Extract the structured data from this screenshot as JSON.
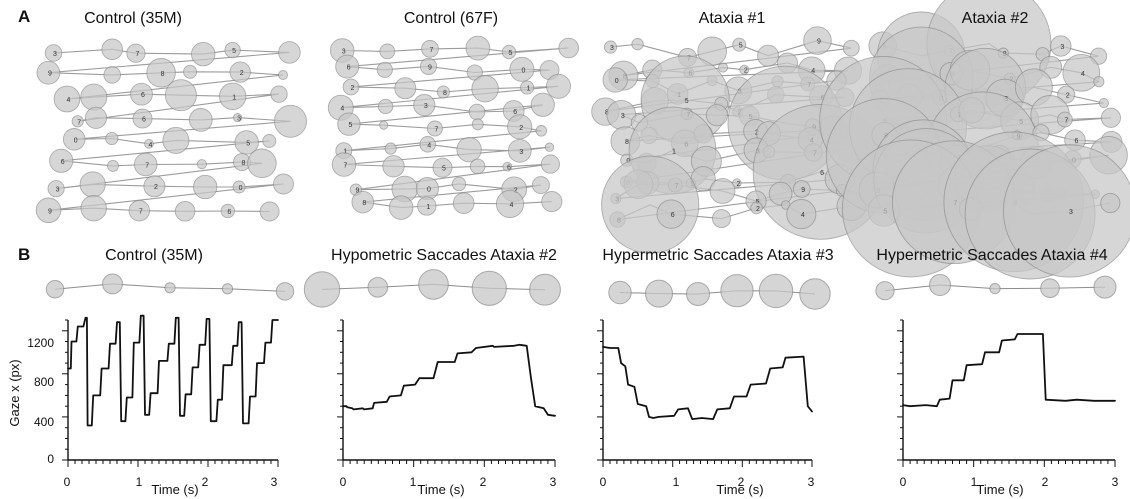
{
  "figure": {
    "panel_labels": [
      "A",
      "B"
    ]
  },
  "chart_data": [
    {
      "type": "scatter",
      "panel": "A",
      "title": "Control (35M)",
      "description_words": "fixation",
      "fixation_labels": [
        "3",
        "7",
        "5",
        "9",
        "8",
        "2",
        "4",
        "6",
        "1",
        "7",
        "6",
        "3",
        "0",
        "4",
        "5",
        "6",
        "7",
        "8",
        "3",
        "2",
        "0",
        "9",
        "7",
        "6",
        "2"
      ],
      "colors": {
        "fixation": "#c7c7c7",
        "fixation_stroke": "#8d8d8d",
        "path": "#8b8b8b"
      }
    },
    {
      "type": "scatter",
      "panel": "A",
      "title": "Control (67F)",
      "fixation_labels": [
        "3",
        "7",
        "5",
        "6",
        "9",
        "0",
        "2",
        "8",
        "1",
        "4",
        "3",
        "6",
        "5",
        "7",
        "2",
        "1",
        "4"
      ],
      "colors": {
        "fixation": "#c7c7c7",
        "fixation_stroke": "#8d8d8d",
        "path": "#8b8b8b"
      }
    },
    {
      "type": "scatter",
      "panel": "A",
      "title": "Ataxia #1",
      "fixation_labels": [
        "3",
        "7",
        "5",
        "9",
        "8",
        "6",
        "2",
        "4",
        "0",
        "1",
        "3",
        "7",
        "8",
        "5",
        "2",
        "6"
      ],
      "colors": {
        "fixation": "#c7c7c7",
        "fixation_stroke": "#8d8d8d",
        "path": "#8b8b8b"
      }
    },
    {
      "type": "scatter",
      "panel": "A",
      "title": "Ataxia #2",
      "fixation_labels": [
        "5",
        "7",
        "8",
        "3",
        "9",
        "6",
        "2",
        "4",
        "1",
        "0",
        "3",
        "2",
        "8",
        "7"
      ],
      "colors": {
        "fixation": "#c7c7c7",
        "fixation_stroke": "#8d8d8d",
        "path": "#8b8b8b"
      }
    },
    {
      "type": "line",
      "panel": "B",
      "title": "Control (35M)",
      "xlabel": "Time (s)",
      "ylabel": "Gaze x (px)",
      "xlim": [
        0,
        3
      ],
      "ylim": [
        0,
        1300
      ],
      "xticks": [
        "0",
        "1",
        "2",
        "3"
      ],
      "yticks": [
        "0",
        "400",
        "800",
        "1200"
      ],
      "series": [
        {
          "points": [
            [
              0.0,
              850
            ],
            [
              0.04,
              850
            ],
            [
              0.05,
              1100
            ],
            [
              0.12,
              1100
            ],
            [
              0.14,
              1240
            ],
            [
              0.22,
              1240
            ],
            [
              0.25,
              1320
            ],
            [
              0.27,
              1320
            ],
            [
              0.28,
              320
            ],
            [
              0.34,
              320
            ],
            [
              0.36,
              600
            ],
            [
              0.46,
              600
            ],
            [
              0.48,
              850
            ],
            [
              0.58,
              850
            ],
            [
              0.6,
              1080
            ],
            [
              0.68,
              1080
            ],
            [
              0.7,
              1280
            ],
            [
              0.74,
              1280
            ],
            [
              0.76,
              360
            ],
            [
              0.82,
              360
            ],
            [
              0.84,
              580
            ],
            [
              0.92,
              580
            ],
            [
              0.94,
              1090
            ],
            [
              1.02,
              1090
            ],
            [
              1.04,
              1340
            ],
            [
              1.08,
              1340
            ],
            [
              1.1,
              420
            ],
            [
              1.16,
              420
            ],
            [
              1.18,
              620
            ],
            [
              1.28,
              620
            ],
            [
              1.3,
              920
            ],
            [
              1.42,
              920
            ],
            [
              1.44,
              1080
            ],
            [
              1.52,
              1080
            ],
            [
              1.54,
              1320
            ],
            [
              1.58,
              1320
            ],
            [
              1.6,
              410
            ],
            [
              1.66,
              410
            ],
            [
              1.68,
              610
            ],
            [
              1.76,
              610
            ],
            [
              1.78,
              860
            ],
            [
              1.86,
              860
            ],
            [
              1.88,
              1070
            ],
            [
              1.96,
              1070
            ],
            [
              1.98,
              1310
            ],
            [
              2.02,
              1310
            ],
            [
              2.04,
              360
            ],
            [
              2.12,
              360
            ],
            [
              2.14,
              560
            ],
            [
              2.2,
              560
            ],
            [
              2.22,
              880
            ],
            [
              2.34,
              880
            ],
            [
              2.36,
              1060
            ],
            [
              2.42,
              1060
            ],
            [
              2.44,
              1280
            ],
            [
              2.48,
              1280
            ],
            [
              2.5,
              340
            ],
            [
              2.58,
              340
            ],
            [
              2.6,
              590
            ],
            [
              2.68,
              590
            ],
            [
              2.7,
              900
            ],
            [
              2.8,
              900
            ],
            [
              2.82,
              1090
            ],
            [
              2.9,
              1090
            ],
            [
              2.92,
              1300
            ],
            [
              3.0,
              1300
            ]
          ]
        }
      ]
    },
    {
      "type": "line",
      "panel": "B",
      "title": "Hypometric Saccades Ataxia #2",
      "xlabel": "Time (s)",
      "xlim": [
        0,
        3
      ],
      "ylim": [
        0,
        1300
      ],
      "xticks": [
        "0",
        "1",
        "2",
        "3"
      ],
      "series": [
        {
          "points": [
            [
              0.0,
              500
            ],
            [
              0.05,
              500
            ],
            [
              0.06,
              490
            ],
            [
              0.13,
              480
            ],
            [
              0.15,
              470
            ],
            [
              0.28,
              480
            ],
            [
              0.3,
              470
            ],
            [
              0.42,
              480
            ],
            [
              0.44,
              530
            ],
            [
              0.62,
              540
            ],
            [
              0.66,
              590
            ],
            [
              0.82,
              600
            ],
            [
              0.86,
              690
            ],
            [
              1.02,
              700
            ],
            [
              1.08,
              760
            ],
            [
              1.28,
              760
            ],
            [
              1.34,
              910
            ],
            [
              1.58,
              910
            ],
            [
              1.62,
              990
            ],
            [
              1.82,
              1000
            ],
            [
              1.88,
              1040
            ],
            [
              2.12,
              1060
            ],
            [
              2.14,
              1050
            ],
            [
              2.42,
              1060
            ],
            [
              2.5,
              1070
            ],
            [
              2.6,
              1060
            ],
            [
              2.66,
              760
            ],
            [
              2.72,
              500
            ],
            [
              2.84,
              480
            ],
            [
              2.9,
              420
            ],
            [
              3.0,
              410
            ]
          ]
        }
      ]
    },
    {
      "type": "line",
      "panel": "B",
      "title": "Hypermetric Saccades Ataxia #3",
      "xlabel": "Time (s)",
      "xlim": [
        0,
        3
      ],
      "ylim": [
        0,
        1300
      ],
      "xticks": [
        "0",
        "1",
        "2",
        "3"
      ],
      "series": [
        {
          "points": [
            [
              0.0,
              1050
            ],
            [
              0.1,
              1040
            ],
            [
              0.22,
              1040
            ],
            [
              0.26,
              900
            ],
            [
              0.32,
              870
            ],
            [
              0.36,
              700
            ],
            [
              0.45,
              680
            ],
            [
              0.5,
              520
            ],
            [
              0.62,
              500
            ],
            [
              0.66,
              400
            ],
            [
              0.72,
              390
            ],
            [
              0.8,
              400
            ],
            [
              1.02,
              410
            ],
            [
              1.08,
              470
            ],
            [
              1.22,
              480
            ],
            [
              1.28,
              380
            ],
            [
              1.42,
              390
            ],
            [
              1.58,
              380
            ],
            [
              1.64,
              470
            ],
            [
              1.82,
              480
            ],
            [
              1.88,
              590
            ],
            [
              2.06,
              590
            ],
            [
              2.12,
              700
            ],
            [
              2.34,
              710
            ],
            [
              2.4,
              850
            ],
            [
              2.58,
              860
            ],
            [
              2.62,
              950
            ],
            [
              2.88,
              960
            ],
            [
              2.94,
              500
            ],
            [
              3.0,
              450
            ]
          ]
        }
      ]
    },
    {
      "type": "line",
      "panel": "B",
      "title": "Hypermetric Saccades Ataxia #4",
      "xlabel": "Time (s)",
      "xlim": [
        0,
        3
      ],
      "ylim": [
        0,
        1300
      ],
      "xticks": [
        "0",
        "1",
        "2",
        "3"
      ],
      "series": [
        {
          "points": [
            [
              0.0,
              510
            ],
            [
              0.1,
              500
            ],
            [
              0.32,
              510
            ],
            [
              0.48,
              500
            ],
            [
              0.52,
              560
            ],
            [
              0.66,
              570
            ],
            [
              0.7,
              740
            ],
            [
              0.86,
              740
            ],
            [
              0.9,
              880
            ],
            [
              1.12,
              890
            ],
            [
              1.16,
              1000
            ],
            [
              1.36,
              1000
            ],
            [
              1.4,
              1110
            ],
            [
              1.58,
              1120
            ],
            [
              1.62,
              1170
            ],
            [
              1.98,
              1170
            ],
            [
              2.02,
              560
            ],
            [
              2.3,
              550
            ],
            [
              2.46,
              560
            ],
            [
              2.7,
              550
            ],
            [
              3.0,
              550
            ]
          ]
        }
      ]
    }
  ]
}
